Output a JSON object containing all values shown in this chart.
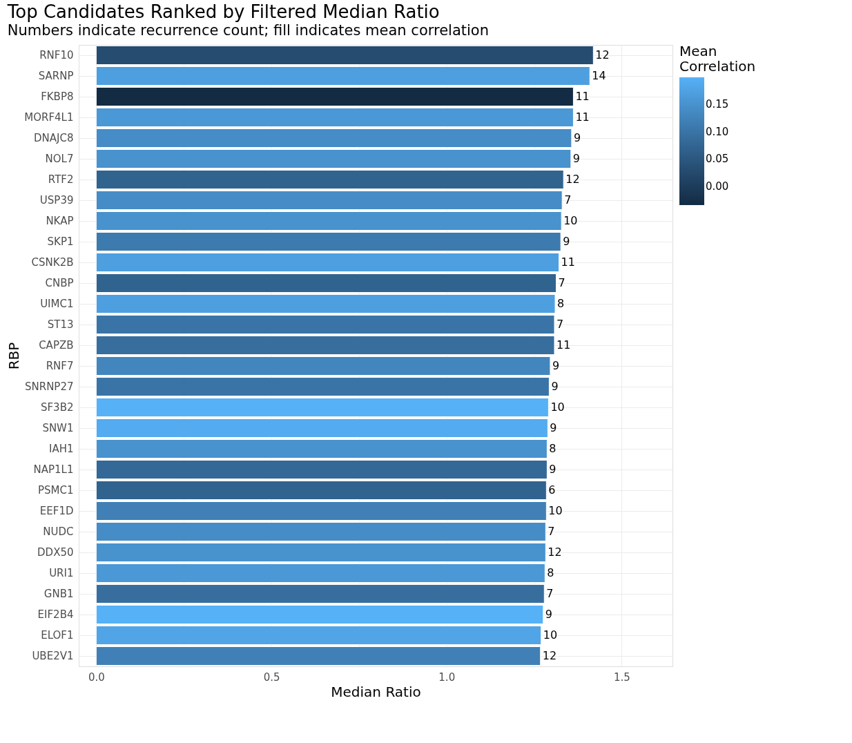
{
  "chart_data": {
    "type": "bar",
    "orientation": "horizontal",
    "title": "Top Candidates Ranked by Filtered Median Ratio",
    "subtitle": "Numbers indicate recurrence count; fill indicates mean correlation",
    "xlabel": "Median Ratio",
    "ylabel": "RBP",
    "clabel": "Mean\nCorrelation",
    "categories": [
      "RNF10",
      "SARNP",
      "FKBP8",
      "MORF4L1",
      "DNAJC8",
      "NOL7",
      "RTF2",
      "USP39",
      "NKAP",
      "SKP1",
      "CSNK2B",
      "CNBP",
      "UIMC1",
      "ST13",
      "CAPZB",
      "RNF7",
      "SNRNP27",
      "SF3B2",
      "SNW1",
      "IAH1",
      "NAP1L1",
      "PSMC1",
      "EEF1D",
      "NUDC",
      "DDX50",
      "URI1",
      "GNB1",
      "EIF2B4",
      "ELOF1",
      "UBE2V1"
    ],
    "values": [
      1.419,
      1.409,
      1.362,
      1.362,
      1.357,
      1.355,
      1.334,
      1.33,
      1.328,
      1.326,
      1.321,
      1.313,
      1.31,
      1.308,
      1.308,
      1.296,
      1.293,
      1.291,
      1.289,
      1.287,
      1.287,
      1.285,
      1.285,
      1.283,
      1.283,
      1.281,
      1.279,
      1.276,
      1.27,
      1.268
    ],
    "cvalues": [
      0.03,
      0.17,
      -0.034,
      0.16,
      0.14,
      0.15,
      0.07,
      0.14,
      0.15,
      0.11,
      0.17,
      0.07,
      0.17,
      0.1,
      0.09,
      0.13,
      0.1,
      0.199,
      0.19,
      0.15,
      0.08,
      0.07,
      0.12,
      0.14,
      0.15,
      0.16,
      0.09,
      0.199,
      0.18,
      0.12
    ],
    "annotations": [
      {
        "text": "12",
        "x": 1.419,
        "y": "RNF10"
      },
      {
        "text": "14",
        "x": 1.409,
        "y": "SARNP"
      },
      {
        "text": "11",
        "x": 1.362,
        "y": "FKBP8"
      },
      {
        "text": "11",
        "x": 1.362,
        "y": "MORF4L1"
      },
      {
        "text": "9",
        "x": 1.357,
        "y": "DNAJC8"
      },
      {
        "text": "9",
        "x": 1.355,
        "y": "NOL7"
      },
      {
        "text": "12",
        "x": 1.334,
        "y": "RTF2"
      },
      {
        "text": "7",
        "x": 1.33,
        "y": "USP39"
      },
      {
        "text": "10",
        "x": 1.328,
        "y": "NKAP"
      },
      {
        "text": "9",
        "x": 1.326,
        "y": "SKP1"
      },
      {
        "text": "11",
        "x": 1.321,
        "y": "CSNK2B"
      },
      {
        "text": "7",
        "x": 1.313,
        "y": "CNBP"
      },
      {
        "text": "8",
        "x": 1.31,
        "y": "UIMC1"
      },
      {
        "text": "7",
        "x": 1.308,
        "y": "ST13"
      },
      {
        "text": "11",
        "x": 1.308,
        "y": "CAPZB"
      },
      {
        "text": "9",
        "x": 1.296,
        "y": "RNF7"
      },
      {
        "text": "9",
        "x": 1.293,
        "y": "SNRNP27"
      },
      {
        "text": "10",
        "x": 1.291,
        "y": "SF3B2"
      },
      {
        "text": "9",
        "x": 1.289,
        "y": "SNW1"
      },
      {
        "text": "8",
        "x": 1.287,
        "y": "IAH1"
      },
      {
        "text": "9",
        "x": 1.287,
        "y": "NAP1L1"
      },
      {
        "text": "6",
        "x": 1.285,
        "y": "PSMC1"
      },
      {
        "text": "10",
        "x": 1.285,
        "y": "EEF1D"
      },
      {
        "text": "7",
        "x": 1.283,
        "y": "NUDC"
      },
      {
        "text": "12",
        "x": 1.283,
        "y": "DDX50"
      },
      {
        "text": "8",
        "x": 1.281,
        "y": "URI1"
      },
      {
        "text": "7",
        "x": 1.279,
        "y": "GNB1"
      },
      {
        "text": "9",
        "x": 1.276,
        "y": "EIF2B4"
      },
      {
        "text": "10",
        "x": 1.27,
        "y": "ELOF1"
      },
      {
        "text": "12",
        "x": 1.268,
        "y": "UBE2V1"
      }
    ],
    "xlim": [
      -0.05,
      1.645
    ],
    "xticks": [
      {
        "value": 0,
        "label": "0.0"
      },
      {
        "value": 0.25,
        "label": null
      },
      0.5,
      {
        "value": 0.75,
        "label": null
      },
      {
        "value": 1,
        "label": "1.0"
      },
      {
        "value": 1.25,
        "label": null
      },
      1.5
    ],
    "clim": [
      -0.034,
      0.199
    ],
    "cticks": [
      {
        "value": 0,
        "label": "0.00"
      },
      0.05,
      {
        "value": 0.1,
        "label": "0.10"
      },
      0.15
    ],
    "grid": true
  }
}
